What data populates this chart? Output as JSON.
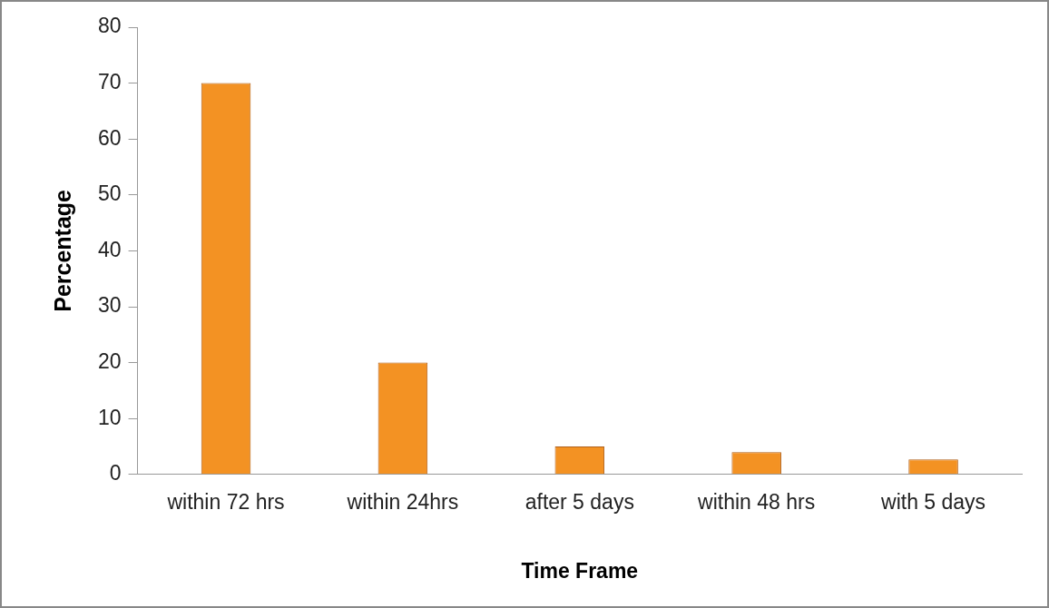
{
  "chart_data": {
    "type": "bar",
    "xlabel": "Time Frame",
    "ylabel": "Percentage",
    "categories": [
      "within 72 hrs",
      "within 24hrs",
      "after 5 days",
      "within 48 hrs",
      "with 5 days"
    ],
    "values": [
      70,
      20,
      5,
      4,
      2.7
    ],
    "color": "#f39223",
    "ylim": [
      0,
      80
    ],
    "yticks": [
      0,
      10,
      20,
      30,
      40,
      50,
      60,
      70,
      80
    ],
    "grid": false,
    "legend": false
  }
}
